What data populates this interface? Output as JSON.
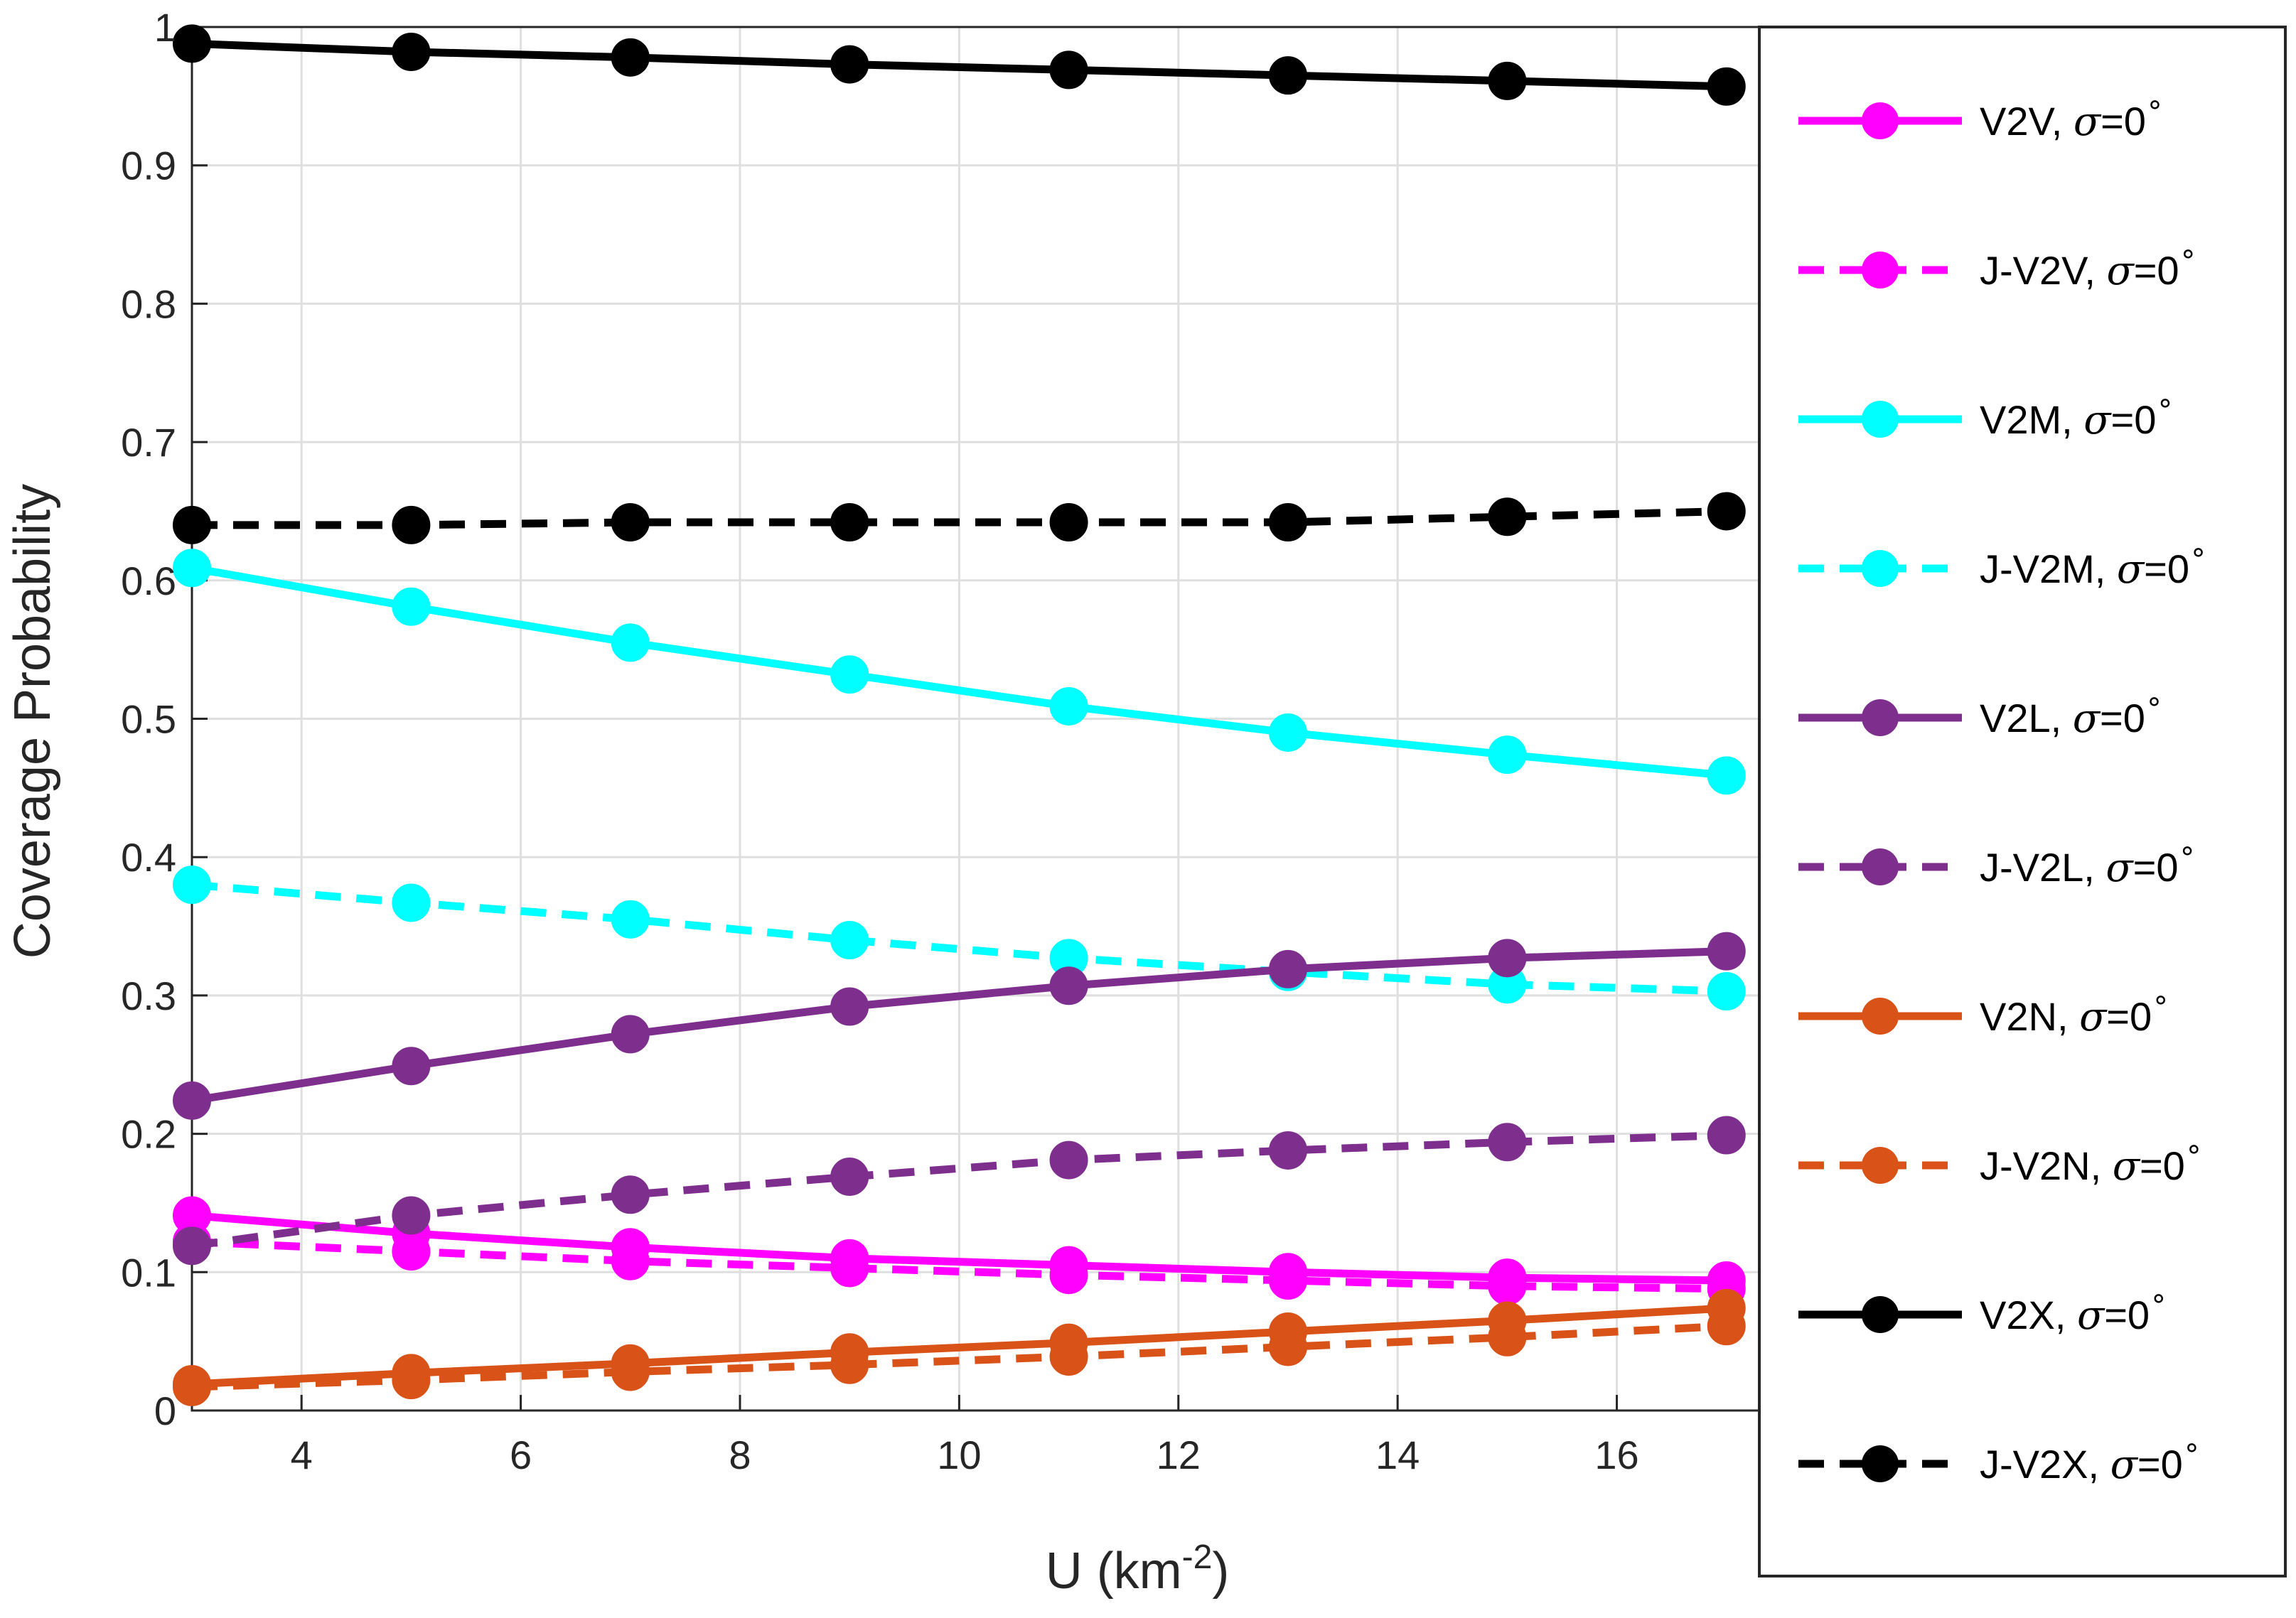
{
  "chart_data": {
    "type": "line",
    "title": "",
    "xlabel": "U (km",
    "xlabel_sup": "-2",
    "xlabel_close": ")",
    "ylabel": "Coverage Probability",
    "xlim": [
      3,
      17.3
    ],
    "ylim": [
      0,
      1
    ],
    "grid": true,
    "xticks": [
      4,
      6,
      8,
      10,
      12,
      14,
      16
    ],
    "yticks": [
      0,
      0.1,
      0.2,
      0.3,
      0.4,
      0.5,
      0.6,
      0.7,
      0.8,
      0.9,
      1
    ],
    "ytick_labels": [
      "0",
      "0.1",
      "0.2",
      "0.3",
      "0.4",
      "0.5",
      "0.6",
      "0.7",
      "0.8",
      "0.9",
      "1"
    ],
    "x": [
      3,
      5,
      7,
      9,
      11,
      13,
      15,
      17
    ],
    "legend_position": "right-outside",
    "series": [
      {
        "name": "V2V",
        "sigma_label": "σ",
        "sigma_value": "=0",
        "degree": "∘",
        "color": "#FF00FF",
        "dash": "solid",
        "values": [
          0.141,
          0.128,
          0.118,
          0.11,
          0.105,
          0.1,
          0.096,
          0.094
        ]
      },
      {
        "name": "J-V2V",
        "sigma_label": "σ",
        "sigma_value": "=0",
        "degree": "∘",
        "color": "#FF00FF",
        "dash": "dashed",
        "values": [
          0.122,
          0.115,
          0.108,
          0.103,
          0.098,
          0.094,
          0.09,
          0.088
        ]
      },
      {
        "name": "V2M",
        "sigma_label": "σ",
        "sigma_value": "=0",
        "degree": "∘",
        "color": "#00FFFF",
        "dash": "solid",
        "values": [
          0.609,
          0.581,
          0.555,
          0.532,
          0.509,
          0.49,
          0.474,
          0.459
        ]
      },
      {
        "name": "J-V2M",
        "sigma_label": "σ",
        "sigma_value": "=0",
        "degree": "∘",
        "color": "#00FFFF",
        "dash": "dashed",
        "values": [
          0.38,
          0.367,
          0.355,
          0.34,
          0.327,
          0.317,
          0.308,
          0.303
        ]
      },
      {
        "name": "V2L",
        "sigma_label": "σ",
        "sigma_value": "=0",
        "degree": "∘",
        "color": "#7E2F8E",
        "dash": "solid",
        "values": [
          0.224,
          0.249,
          0.272,
          0.292,
          0.307,
          0.319,
          0.327,
          0.332
        ]
      },
      {
        "name": "J-V2L",
        "sigma_label": "σ",
        "sigma_value": "=0",
        "degree": "∘",
        "color": "#7E2F8E",
        "dash": "dashed",
        "values": [
          0.119,
          0.141,
          0.156,
          0.169,
          0.181,
          0.188,
          0.194,
          0.199
        ]
      },
      {
        "name": "V2N",
        "sigma_label": "σ",
        "sigma_value": "=0",
        "degree": "∘",
        "color": "#D95319",
        "dash": "solid",
        "values": [
          0.019,
          0.027,
          0.034,
          0.042,
          0.049,
          0.057,
          0.065,
          0.074
        ]
      },
      {
        "name": "J-V2N",
        "sigma_label": "σ",
        "sigma_value": "=0",
        "degree": "∘",
        "color": "#D95319",
        "dash": "dashed",
        "values": [
          0.017,
          0.022,
          0.028,
          0.033,
          0.039,
          0.046,
          0.053,
          0.061
        ]
      },
      {
        "name": "V2X",
        "sigma_label": "σ",
        "sigma_value": "=0",
        "degree": "∘",
        "color": "#000000",
        "dash": "solid",
        "values": [
          0.988,
          0.982,
          0.978,
          0.973,
          0.969,
          0.965,
          0.961,
          0.957
        ]
      },
      {
        "name": "J-V2X",
        "sigma_label": "σ",
        "sigma_value": "=0",
        "degree": "∘",
        "color": "#000000",
        "dash": "dashed",
        "values": [
          0.64,
          0.64,
          0.642,
          0.642,
          0.642,
          0.642,
          0.646,
          0.65
        ]
      }
    ]
  }
}
